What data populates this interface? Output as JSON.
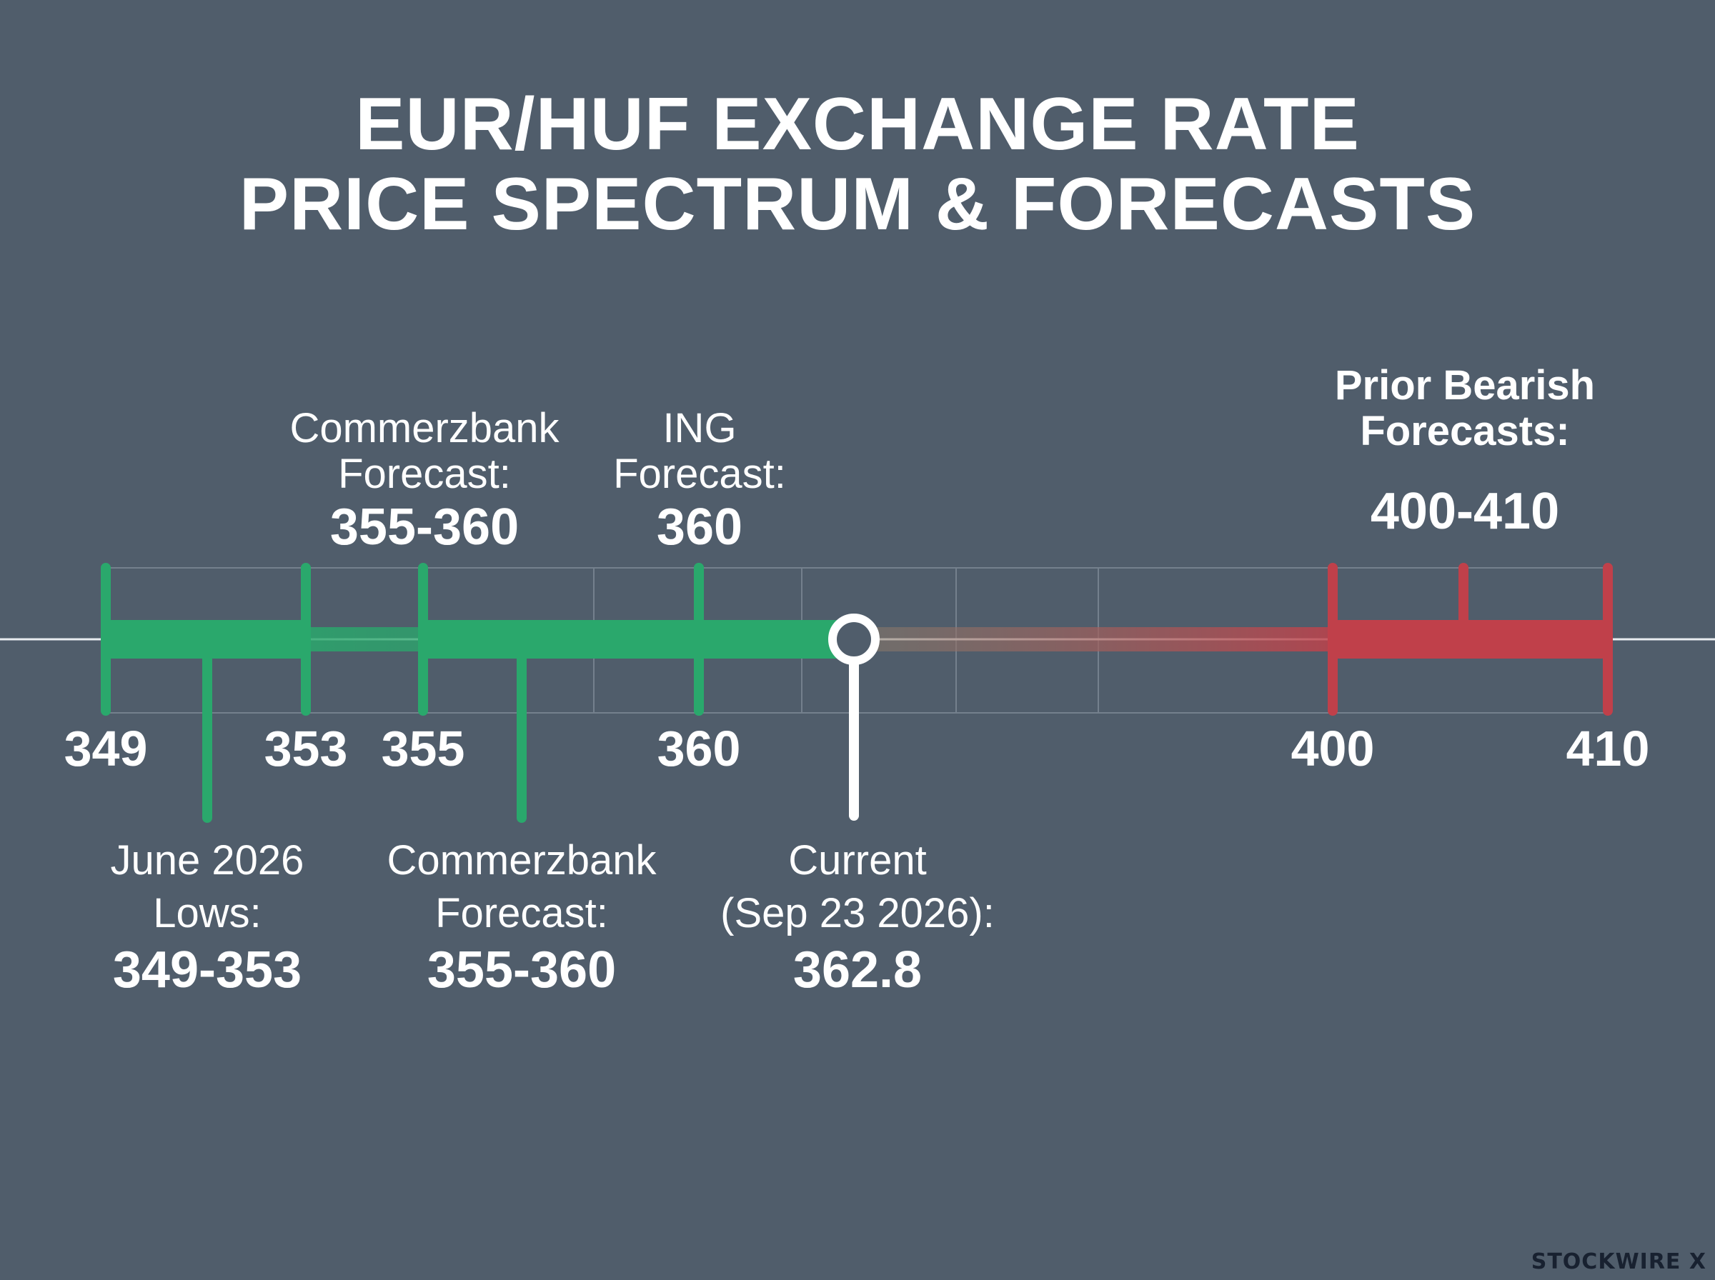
{
  "title": {
    "line1": "EUR/HUF EXCHANGE RATE",
    "line2": "PRICE SPECTRUM & FORECASTS"
  },
  "colors": {
    "background": "#505d6b",
    "bullish": "#2aa86c",
    "bearish": "#c0404a",
    "current": "#ffffff"
  },
  "chart_data": {
    "type": "range-spectrum",
    "unit": "HUF per EUR",
    "tick_labels": [
      "349",
      "353",
      "355",
      "360",
      "400",
      "410"
    ],
    "tick_values": [
      349,
      353,
      355,
      360,
      400,
      410
    ],
    "ranges": [
      {
        "id": "june-lows",
        "from": 349,
        "to": 353,
        "color": "bullish"
      },
      {
        "id": "commerzbank",
        "from": 355,
        "to": 360,
        "color": "bullish"
      },
      {
        "id": "prior-bearish",
        "from": 400,
        "to": 410,
        "color": "bearish"
      }
    ],
    "markers": [
      {
        "id": "ing",
        "value": 360
      },
      {
        "id": "current",
        "value": 362.8
      }
    ],
    "annotations": {
      "commerzbank_top": {
        "line1": "Commerzbank",
        "line2": "Forecast:",
        "value": "355-360"
      },
      "ing_top": {
        "line1": "ING",
        "line2": "Forecast:",
        "value": "360"
      },
      "prior_bearish_top": {
        "line1": "Prior Bearish",
        "line2": "Forecasts:",
        "value": "400-410"
      },
      "june_lows_bottom": {
        "line1": "June 2026",
        "line2": "Lows:",
        "value": "349-353"
      },
      "commerzbank_bottom": {
        "line1": "Commerzbank",
        "line2": "Forecast:",
        "value": "355-360"
      },
      "current_bottom": {
        "line1": "Current",
        "line2": "(Sep 23 2026):",
        "value": "362.8"
      }
    }
  },
  "watermark": "STOCKWIRE X"
}
